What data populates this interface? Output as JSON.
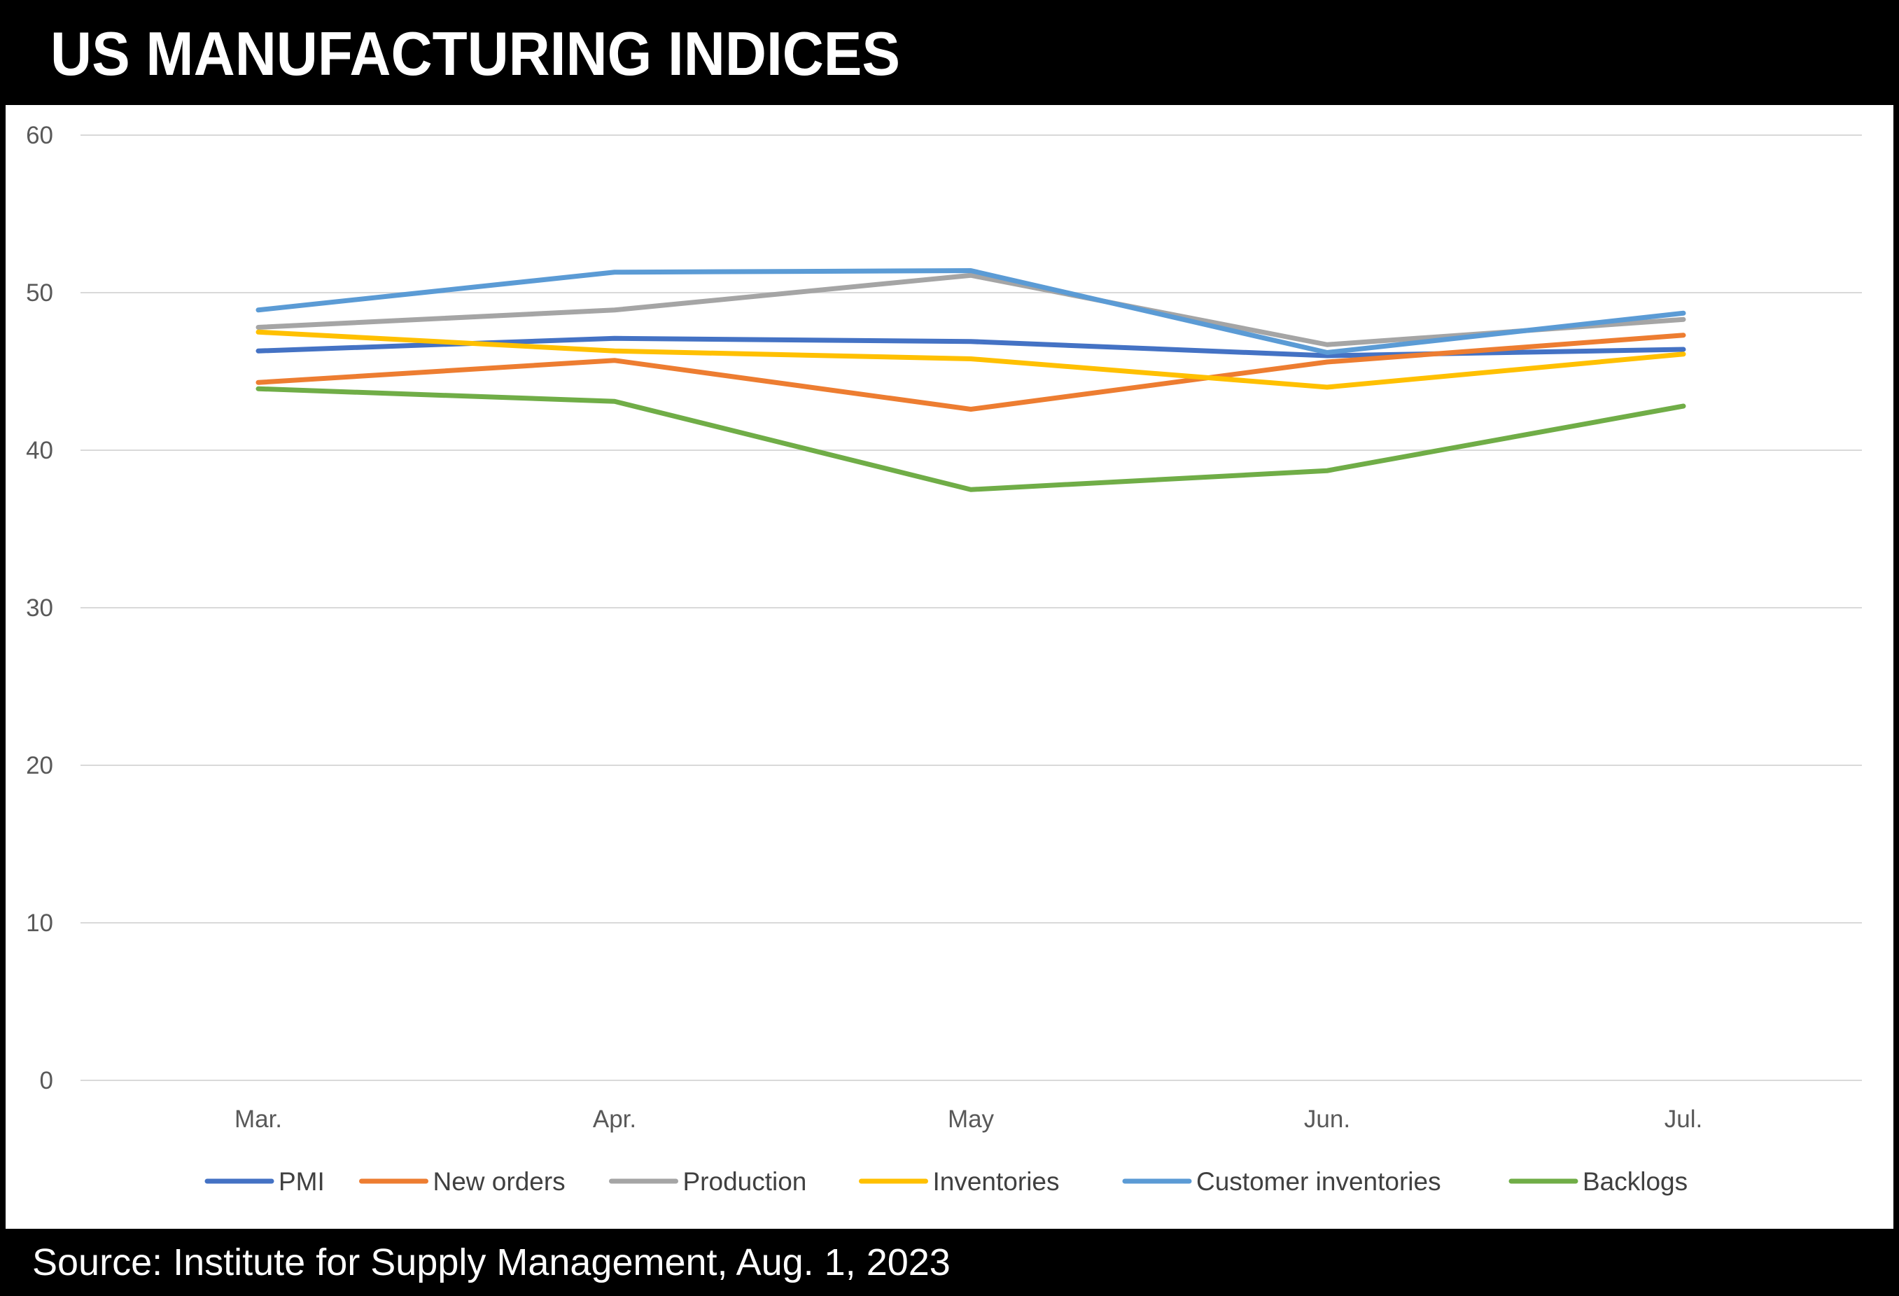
{
  "title": "US MANUFACTURING INDICES",
  "source": "Source: Institute for Supply Management, Aug. 1, 2023",
  "chart_data": {
    "type": "line",
    "title": "US MANUFACTURING INDICES",
    "xlabel": "",
    "ylabel": "",
    "categories": [
      "Mar.",
      "Apr.",
      "May",
      "Jun.",
      "Jul."
    ],
    "ylim": [
      0,
      60
    ],
    "yticks": [
      0,
      10,
      20,
      30,
      40,
      50,
      60
    ],
    "grid": true,
    "legend_position": "bottom",
    "series": [
      {
        "name": "PMI",
        "color": "#4472C4",
        "values": [
          46.3,
          47.1,
          46.9,
          46.0,
          46.4
        ]
      },
      {
        "name": "New orders",
        "color": "#ED7D31",
        "values": [
          44.3,
          45.7,
          42.6,
          45.6,
          47.3
        ]
      },
      {
        "name": "Production",
        "color": "#A5A5A5",
        "values": [
          47.8,
          48.9,
          51.1,
          46.7,
          48.3
        ]
      },
      {
        "name": "Inventories",
        "color": "#FFC000",
        "values": [
          47.5,
          46.3,
          45.8,
          44.0,
          46.1
        ]
      },
      {
        "name": "Customer inventories",
        "color": "#5B9BD5",
        "values": [
          48.9,
          51.3,
          51.4,
          46.2,
          48.7
        ]
      },
      {
        "name": "Backlogs",
        "color": "#70AD47",
        "values": [
          43.9,
          43.1,
          37.5,
          38.7,
          42.8
        ]
      }
    ]
  }
}
